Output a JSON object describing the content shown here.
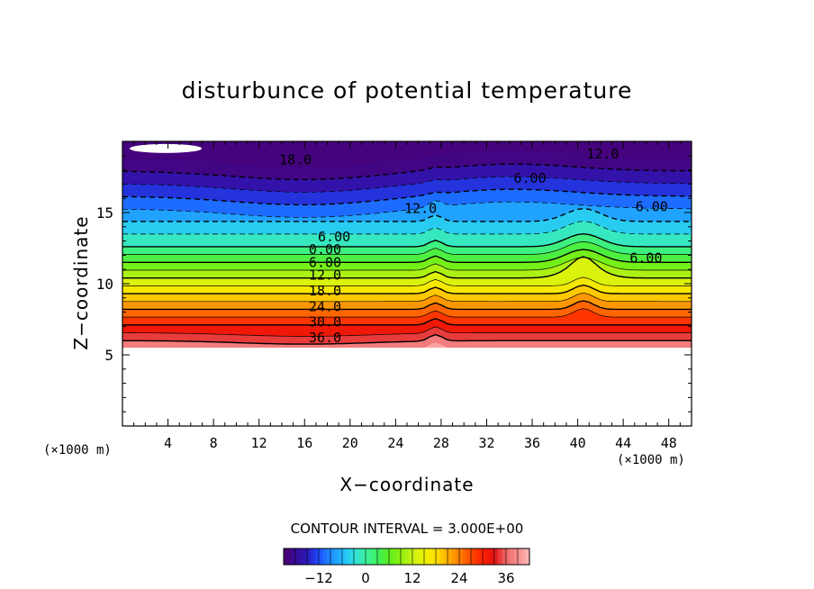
{
  "chart_data": {
    "type": "heatmap",
    "title": "disturbunce of potential temperature",
    "xlabel": "X−coordinate",
    "ylabel": "Z−coordinate",
    "x_unit_label": "(×1000 m)",
    "x_unit_label_right": "(×1000 m)",
    "x_ticks": [
      4,
      8,
      12,
      16,
      20,
      24,
      28,
      32,
      36,
      40,
      44,
      48
    ],
    "y_ticks": [
      5,
      10,
      15
    ],
    "xlim": [
      0,
      50
    ],
    "ylim": [
      0,
      20
    ],
    "terrain_top_z": 5.5,
    "contour_interval_label": "CONTOUR INTERVAL = 3.000E+00",
    "colorbar": {
      "range": [
        -21,
        42
      ],
      "ticks": [
        -12,
        0,
        12,
        24,
        36
      ],
      "tick_labels": [
        "−12",
        "0",
        "12",
        "24",
        "36"
      ]
    },
    "contour_levels_labeled": [
      {
        "value": -18,
        "label": "18.0",
        "dashed": true,
        "label_x": 15.2,
        "label_z": 18.7
      },
      {
        "value": -12,
        "label": "12.0",
        "dashed": true,
        "label_x": 26.2,
        "label_z": 15.3
      },
      {
        "value": -12,
        "label": "12.0",
        "dashed": true,
        "label_x": 42.2,
        "label_z": 19.1
      },
      {
        "value": -6,
        "label": "6.00",
        "dashed": true,
        "label_x": 18.6,
        "label_z": 13.3
      },
      {
        "value": -6,
        "label": "6.00",
        "dashed": true,
        "label_x": 35.8,
        "label_z": 17.4
      },
      {
        "value": -6,
        "label": "6.00",
        "dashed": true,
        "label_x": 46.5,
        "label_z": 15.4
      },
      {
        "value": 0,
        "label": "0.00",
        "dashed": false,
        "label_x": 17.8,
        "label_z": 12.4
      },
      {
        "value": 6,
        "label": "6.00",
        "dashed": false,
        "label_x": 17.8,
        "label_z": 11.5
      },
      {
        "value": 6,
        "label": "6.00",
        "dashed": false,
        "label_x": 46.0,
        "label_z": 11.8
      },
      {
        "value": 12,
        "label": "12.0",
        "dashed": false,
        "label_x": 17.8,
        "label_z": 10.6
      },
      {
        "value": 18,
        "label": "18.0",
        "dashed": false,
        "label_x": 17.8,
        "label_z": 9.5
      },
      {
        "value": 24,
        "label": "24.0",
        "dashed": false,
        "label_x": 17.8,
        "label_z": 8.4
      },
      {
        "value": 30,
        "label": "30.0",
        "dashed": false,
        "label_x": 17.8,
        "label_z": 7.3
      },
      {
        "value": 36,
        "label": "36.0",
        "dashed": false,
        "label_x": 17.8,
        "label_z": 6.2
      }
    ],
    "grid": false,
    "legend": "bottom (color bar)"
  }
}
